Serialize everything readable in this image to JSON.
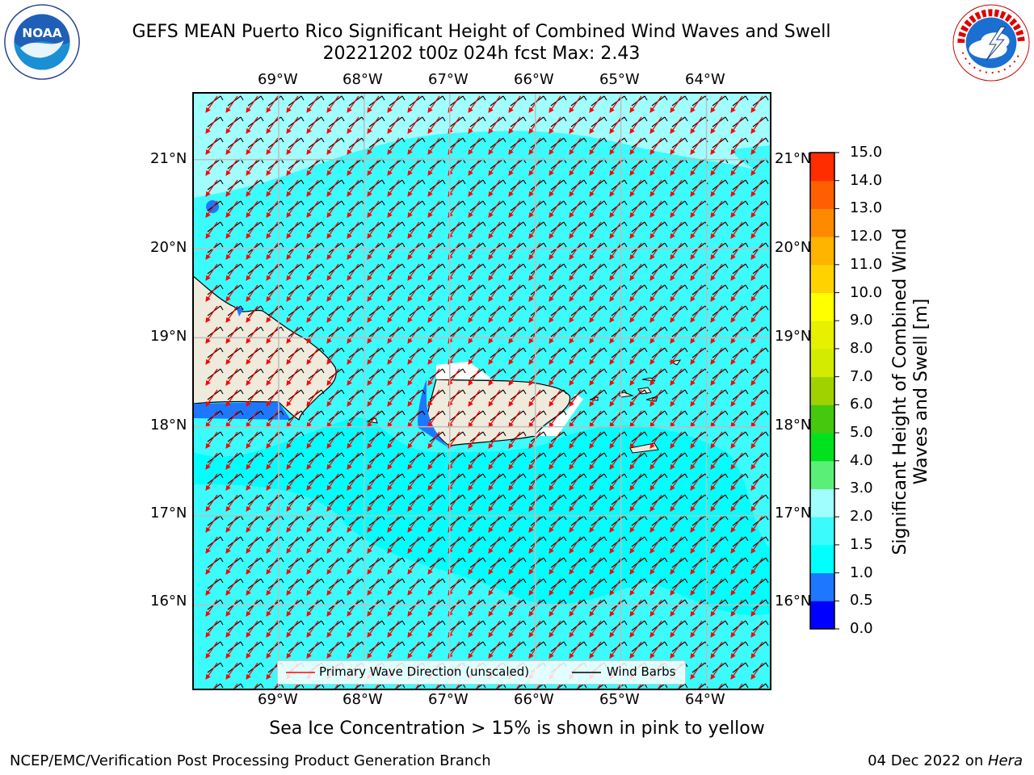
{
  "title_line1": "GEFS MEAN Puerto Rico Significant Height of Combined Wind Waves and Swell",
  "title_line2": "20221202 t00z 024h fcst   Max: 2.43",
  "chart_data": {
    "type": "heatmap",
    "title": "GEFS MEAN Puerto Rico Significant Height of Combined Wind Waves and Swell",
    "subtitle": "20221202 t00z 024h fcst   Max: 2.43",
    "xlabel": "",
    "ylabel": "",
    "xlim": [
      -70.0,
      -63.25
    ],
    "ylim": [
      15.05,
      21.75
    ],
    "x_ticks": [
      "69°W",
      "68°W",
      "67°W",
      "66°W",
      "65°W",
      "64°W"
    ],
    "y_ticks": [
      "21°N",
      "20°N",
      "19°N",
      "18°N",
      "17°N",
      "16°N"
    ],
    "grid": true,
    "max_value": 2.43,
    "colorbar": {
      "label": "Significant Height of Combined Wind Waves and Swell [m]",
      "ticks": [
        "0.0",
        "0.5",
        "1.0",
        "1.5",
        "2.0",
        "3.0",
        "4.0",
        "5.0",
        "6.0",
        "7.0",
        "8.0",
        "9.0",
        "10.0",
        "11.0",
        "12.0",
        "13.0",
        "14.0",
        "15.0"
      ],
      "colors": [
        "#0000ff",
        "#1e78ff",
        "#00ffff",
        "#3cfbfc",
        "#a0fefe",
        "#5af078",
        "#00e21d",
        "#46c80f",
        "#a0d200",
        "#d2eb00",
        "#e6f000",
        "#ffff00",
        "#ffd200",
        "#ffb400",
        "#ff8a00",
        "#ff5f00",
        "#ff2d00",
        "#ff0000"
      ]
    },
    "legend": {
      "placement": "bottom-center",
      "entries": [
        {
          "label": "Primary Wave Direction (unscaled)",
          "color": "#ff0000"
        },
        {
          "label": "Wind Barbs",
          "color": "#000000"
        }
      ]
    },
    "wave_direction_note": "arrows point toward southwest",
    "wind_barb_note": "barbs from northeast"
  },
  "sub_note": "Sea Ice Concentration > 15% is shown in pink to yellow",
  "footer_left": "NCEP/EMC/Verification Post Processing Product Generation Branch",
  "footer_right_date": "04 Dec 2022 on ",
  "footer_right_host": "Hera",
  "colors": {
    "land": "#efebdc",
    "ocean_low": "#3cfbfc",
    "ocean_mid": "#00ffff",
    "ocean_high": "#a0fefe"
  }
}
